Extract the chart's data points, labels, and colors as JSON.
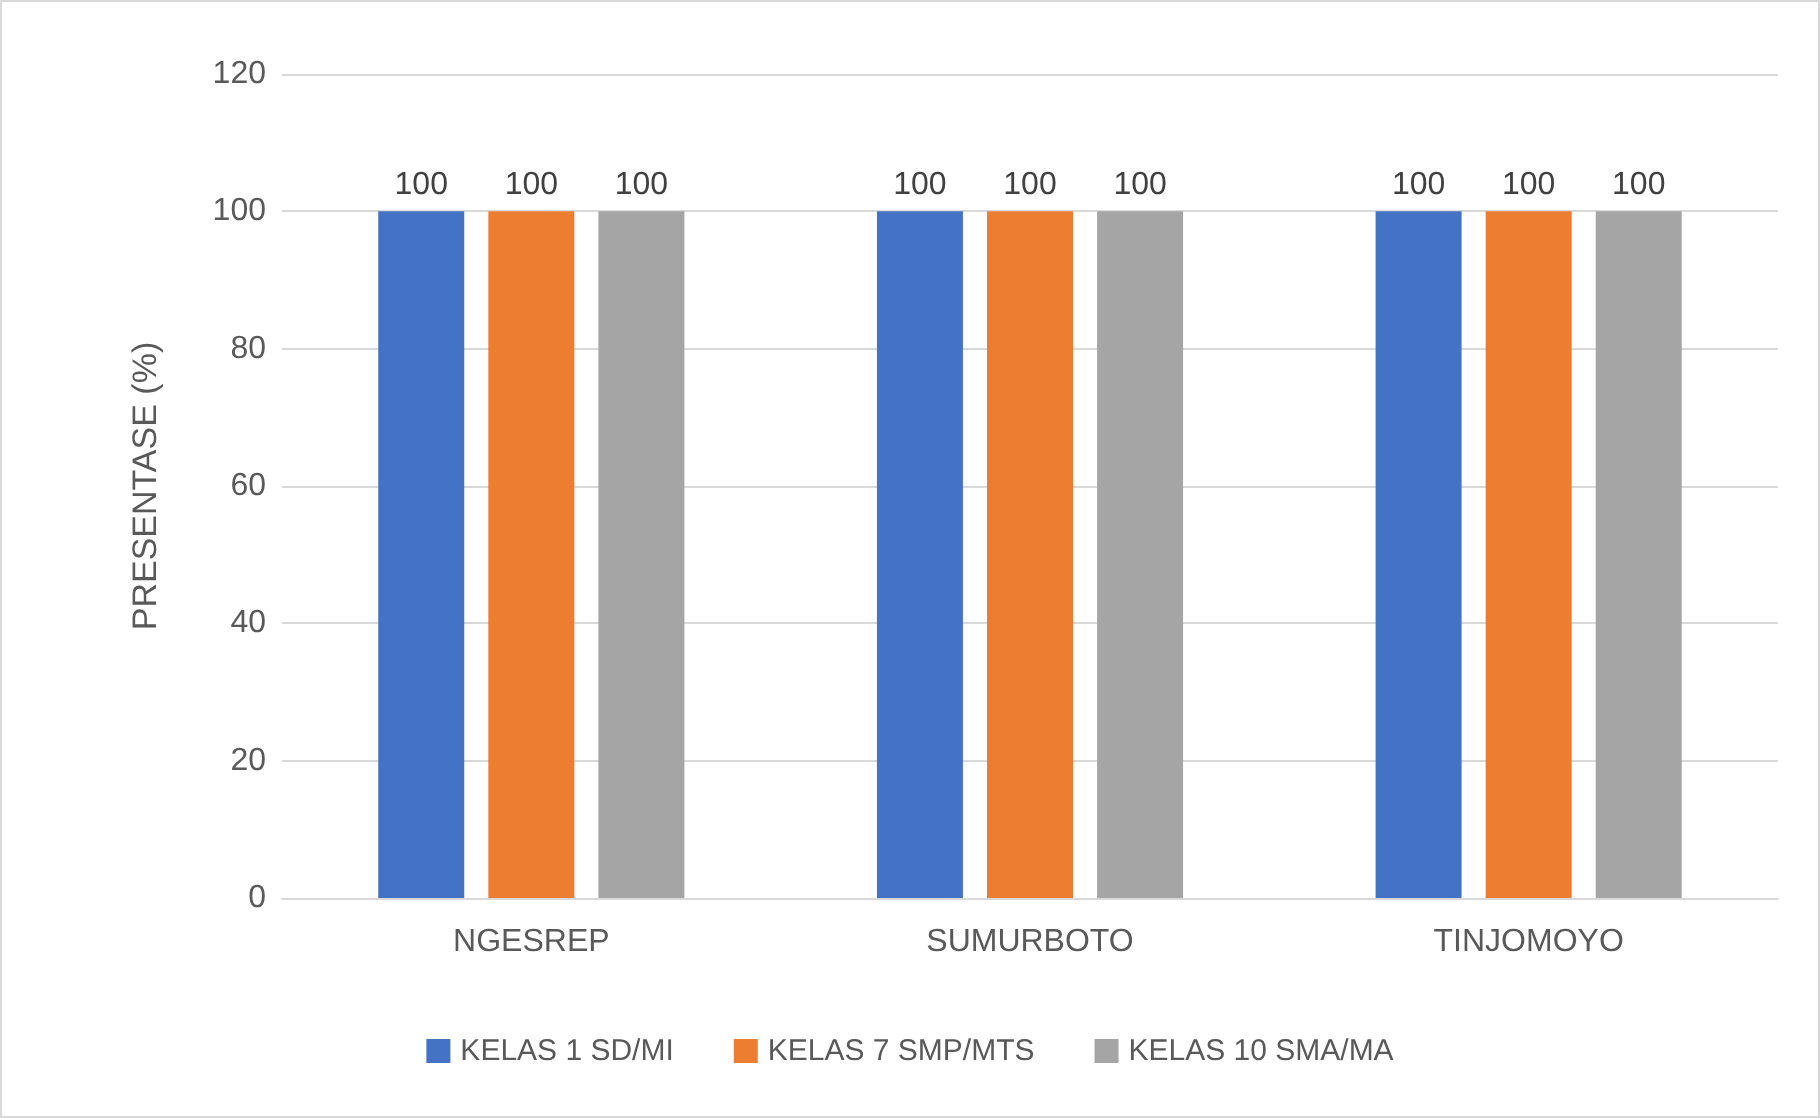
{
  "chart_data": {
    "type": "bar",
    "ylabel": "PRESENTASE (%)",
    "categories": [
      "NGESREP",
      "SUMURBOTO",
      "TINJOMOYO"
    ],
    "series": [
      {
        "name": "KELAS 1 SD/MI",
        "color": "#4472c4",
        "values": [
          100,
          100,
          100
        ]
      },
      {
        "name": "KELAS 7 SMP/MTS",
        "color": "#ed7d31",
        "values": [
          100,
          100,
          100
        ]
      },
      {
        "name": "KELAS 10 SMA/MA",
        "color": "#a5a5a5",
        "values": [
          100,
          100,
          100
        ]
      }
    ],
    "ylim": [
      0,
      120
    ],
    "yticks": [
      0,
      20,
      40,
      60,
      80,
      100,
      120
    ],
    "grid": "y",
    "legend": "bottom",
    "data_labels": true
  }
}
